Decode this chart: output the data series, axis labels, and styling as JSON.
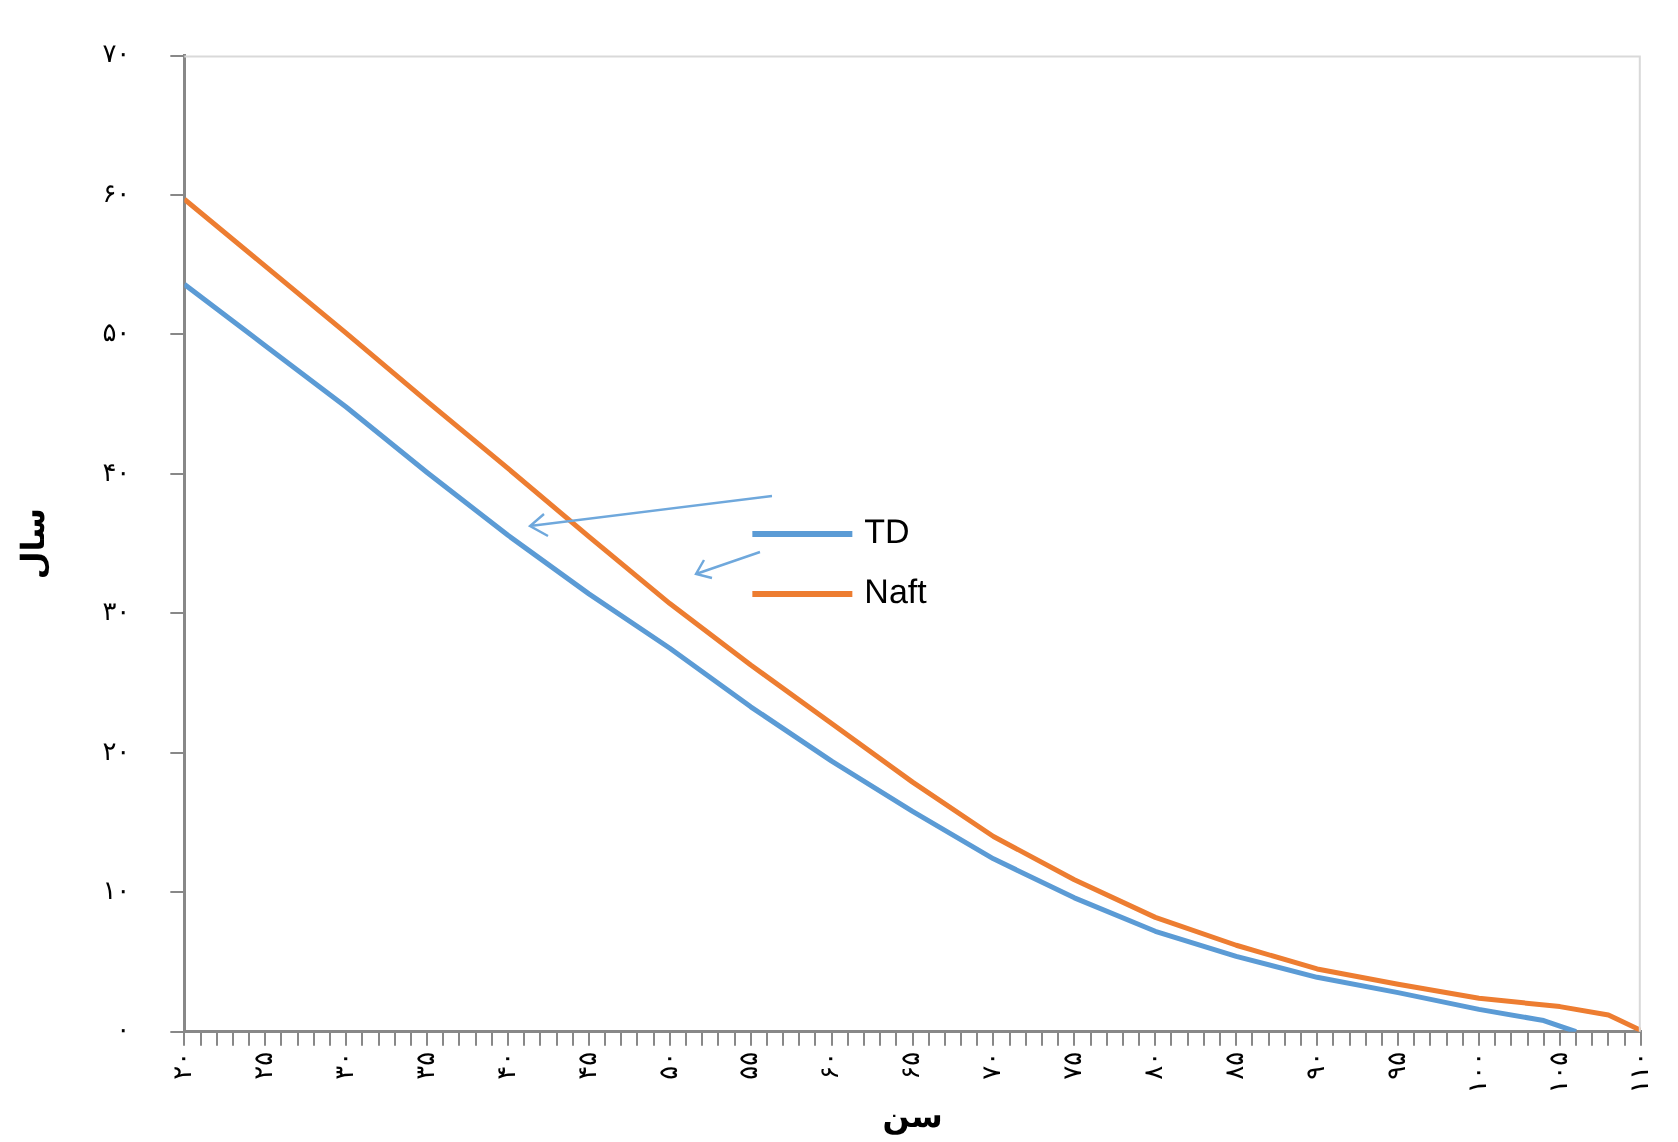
{
  "chart_data": {
    "type": "line",
    "xlabel": "سن",
    "ylabel": "سال",
    "xlim": [
      20,
      110
    ],
    "xticks": [
      {
        "value": 20,
        "label": "۲۰"
      },
      {
        "value": 21,
        "label": null
      },
      {
        "value": 22,
        "label": null
      },
      {
        "value": 23,
        "label": null
      },
      {
        "value": 24,
        "label": null
      },
      {
        "value": 25,
        "label": "۲۵"
      },
      {
        "value": 26,
        "label": null
      },
      {
        "value": 27,
        "label": null
      },
      {
        "value": 28,
        "label": null
      },
      {
        "value": 29,
        "label": null
      },
      {
        "value": 30,
        "label": "۳۰"
      },
      {
        "value": 31,
        "label": null
      },
      {
        "value": 32,
        "label": null
      },
      {
        "value": 33,
        "label": null
      },
      {
        "value": 34,
        "label": null
      },
      {
        "value": 35,
        "label": "۳۵"
      },
      {
        "value": 36,
        "label": null
      },
      {
        "value": 37,
        "label": null
      },
      {
        "value": 38,
        "label": null
      },
      {
        "value": 39,
        "label": null
      },
      {
        "value": 40,
        "label": "۴۰"
      },
      {
        "value": 41,
        "label": null
      },
      {
        "value": 42,
        "label": null
      },
      {
        "value": 43,
        "label": null
      },
      {
        "value": 44,
        "label": null
      },
      {
        "value": 45,
        "label": "۴۵"
      },
      {
        "value": 46,
        "label": null
      },
      {
        "value": 47,
        "label": null
      },
      {
        "value": 48,
        "label": null
      },
      {
        "value": 49,
        "label": null
      },
      {
        "value": 50,
        "label": "۵۰"
      },
      {
        "value": 51,
        "label": null
      },
      {
        "value": 52,
        "label": null
      },
      {
        "value": 53,
        "label": null
      },
      {
        "value": 54,
        "label": null
      },
      {
        "value": 55,
        "label": "۵۵"
      },
      {
        "value": 56,
        "label": null
      },
      {
        "value": 57,
        "label": null
      },
      {
        "value": 58,
        "label": null
      },
      {
        "value": 59,
        "label": null
      },
      {
        "value": 60,
        "label": "۶۰"
      },
      {
        "value": 61,
        "label": null
      },
      {
        "value": 62,
        "label": null
      },
      {
        "value": 63,
        "label": null
      },
      {
        "value": 64,
        "label": null
      },
      {
        "value": 65,
        "label": "۶۵"
      },
      {
        "value": 66,
        "label": null
      },
      {
        "value": 67,
        "label": null
      },
      {
        "value": 68,
        "label": null
      },
      {
        "value": 69,
        "label": null
      },
      {
        "value": 70,
        "label": "۷۰"
      },
      {
        "value": 71,
        "label": null
      },
      {
        "value": 72,
        "label": null
      },
      {
        "value": 73,
        "label": null
      },
      {
        "value": 74,
        "label": null
      },
      {
        "value": 75,
        "label": "۷۵"
      },
      {
        "value": 76,
        "label": null
      },
      {
        "value": 77,
        "label": null
      },
      {
        "value": 78,
        "label": null
      },
      {
        "value": 79,
        "label": null
      },
      {
        "value": 80,
        "label": "۸۰"
      },
      {
        "value": 81,
        "label": null
      },
      {
        "value": 82,
        "label": null
      },
      {
        "value": 83,
        "label": null
      },
      {
        "value": 84,
        "label": null
      },
      {
        "value": 85,
        "label": "۸۵"
      },
      {
        "value": 86,
        "label": null
      },
      {
        "value": 87,
        "label": null
      },
      {
        "value": 88,
        "label": null
      },
      {
        "value": 89,
        "label": null
      },
      {
        "value": 90,
        "label": "۹۰"
      },
      {
        "value": 91,
        "label": null
      },
      {
        "value": 92,
        "label": null
      },
      {
        "value": 93,
        "label": null
      },
      {
        "value": 94,
        "label": null
      },
      {
        "value": 95,
        "label": "۹۵"
      },
      {
        "value": 96,
        "label": null
      },
      {
        "value": 97,
        "label": null
      },
      {
        "value": 98,
        "label": null
      },
      {
        "value": 99,
        "label": null
      },
      {
        "value": 100,
        "label": "۱۰۰"
      },
      {
        "value": 101,
        "label": null
      },
      {
        "value": 102,
        "label": null
      },
      {
        "value": 103,
        "label": null
      },
      {
        "value": 104,
        "label": null
      },
      {
        "value": 105,
        "label": "۱۰۵"
      },
      {
        "value": 106,
        "label": null
      },
      {
        "value": 107,
        "label": null
      },
      {
        "value": 108,
        "label": null
      },
      {
        "value": 109,
        "label": null
      },
      {
        "value": 110,
        "label": "۱۱۰"
      }
    ],
    "ylim": [
      0,
      70
    ],
    "yticks": [
      {
        "value": 0,
        "label": "۰"
      },
      {
        "value": 10,
        "label": "۱۰"
      },
      {
        "value": 20,
        "label": "۲۰"
      },
      {
        "value": 30,
        "label": "۳۰"
      },
      {
        "value": 40,
        "label": "۴۰"
      },
      {
        "value": 50,
        "label": "۵۰"
      },
      {
        "value": 60,
        "label": "۶۰"
      },
      {
        "value": 70,
        "label": "۷۰"
      }
    ],
    "grid": false,
    "legend": "center",
    "marker": "none",
    "line_style": "solid",
    "series": [
      {
        "name": "TD",
        "color": "#5b9bd5",
        "x": [
          20,
          25,
          30,
          35,
          40,
          45,
          50,
          55,
          60,
          65,
          70,
          75,
          80,
          85,
          90,
          95,
          100,
          104,
          106
        ],
        "values": [
          53.6,
          49.2,
          44.8,
          40.1,
          35.6,
          31.4,
          27.5,
          23.3,
          19.4,
          15.8,
          12.4,
          9.6,
          7.2,
          5.4,
          3.9,
          2.8,
          1.6,
          0.8,
          0
        ]
      },
      {
        "name": "Naft",
        "color": "#ed7d31",
        "x": [
          20,
          25,
          30,
          35,
          40,
          45,
          50,
          55,
          60,
          65,
          70,
          75,
          80,
          85,
          90,
          95,
          100,
          105,
          108,
          110
        ],
        "values": [
          59.7,
          54.9,
          50.1,
          45.2,
          40.4,
          35.5,
          30.7,
          26.3,
          22.1,
          17.9,
          14,
          10.9,
          8.2,
          6.2,
          4.5,
          3.4,
          2.4,
          1.8,
          1.2,
          0.1
        ]
      }
    ]
  }
}
